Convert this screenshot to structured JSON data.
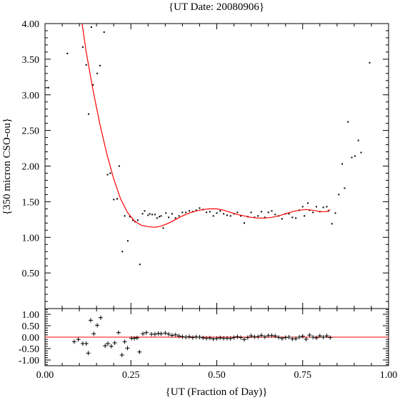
{
  "chart_data": [
    {
      "type": "scatter",
      "title": "{UT Date: 20080906}",
      "xlabel": "{UT (Fraction of Day)}",
      "ylabel": "{350 micron CSO-ou}",
      "xlim": [
        0.0,
        1.0
      ],
      "ylim": [
        0.0,
        4.0
      ],
      "x_ticks": [
        "0.00",
        "0.25",
        "0.50",
        "0.75",
        "1.00"
      ],
      "y_ticks": [
        "0.50",
        "1.00",
        "1.50",
        "2.00",
        "2.50",
        "3.00",
        "3.50",
        "4.00"
      ],
      "grid": false,
      "series": [
        {
          "marker": "dot",
          "color": "#000000",
          "points": [
            [
              0.01,
              3.1
            ],
            [
              0.065,
              3.58
            ],
            [
              0.11,
              3.67
            ],
            [
              0.12,
              3.42
            ],
            [
              0.127,
              2.73
            ],
            [
              0.135,
              3.95
            ],
            [
              0.14,
              3.14
            ],
            [
              0.152,
              3.3
            ],
            [
              0.16,
              3.41
            ],
            [
              0.172,
              3.88
            ],
            [
              0.182,
              1.88
            ],
            [
              0.19,
              1.9
            ],
            [
              0.2,
              1.53
            ],
            [
              0.21,
              1.54
            ],
            [
              0.216,
              2.0
            ],
            [
              0.225,
              0.8
            ],
            [
              0.232,
              1.3
            ],
            [
              0.241,
              0.95
            ],
            [
              0.247,
              1.29
            ],
            [
              0.256,
              1.24
            ],
            [
              0.262,
              1.22
            ],
            [
              0.27,
              1.24
            ],
            [
              0.276,
              0.62
            ],
            [
              0.284,
              1.33
            ],
            [
              0.29,
              1.37
            ],
            [
              0.3,
              1.31
            ],
            [
              0.305,
              1.33
            ],
            [
              0.312,
              1.32
            ],
            [
              0.32,
              1.32
            ],
            [
              0.326,
              1.27
            ],
            [
              0.333,
              1.29
            ],
            [
              0.338,
              1.3
            ],
            [
              0.344,
              1.13
            ],
            [
              0.352,
              1.34
            ],
            [
              0.36,
              1.28
            ],
            [
              0.37,
              1.33
            ],
            [
              0.38,
              1.27
            ],
            [
              0.39,
              1.3
            ],
            [
              0.4,
              1.35
            ],
            [
              0.41,
              1.35
            ],
            [
              0.42,
              1.37
            ],
            [
              0.43,
              1.36
            ],
            [
              0.44,
              1.38
            ],
            [
              0.45,
              1.41
            ],
            [
              0.46,
              1.39
            ],
            [
              0.47,
              1.35
            ],
            [
              0.48,
              1.36
            ],
            [
              0.49,
              1.3
            ],
            [
              0.5,
              1.34
            ],
            [
              0.51,
              1.37
            ],
            [
              0.52,
              1.33
            ],
            [
              0.53,
              1.31
            ],
            [
              0.54,
              1.3
            ],
            [
              0.55,
              1.33
            ],
            [
              0.56,
              1.35
            ],
            [
              0.57,
              1.3
            ],
            [
              0.58,
              1.2
            ],
            [
              0.59,
              1.29
            ],
            [
              0.6,
              1.35
            ],
            [
              0.61,
              1.28
            ],
            [
              0.62,
              1.3
            ],
            [
              0.63,
              1.36
            ],
            [
              0.64,
              1.28
            ],
            [
              0.65,
              1.35
            ],
            [
              0.66,
              1.37
            ],
            [
              0.67,
              1.32
            ],
            [
              0.68,
              1.3
            ],
            [
              0.69,
              1.26
            ],
            [
              0.7,
              1.33
            ],
            [
              0.71,
              1.33
            ],
            [
              0.72,
              1.28
            ],
            [
              0.73,
              1.27
            ],
            [
              0.74,
              1.38
            ],
            [
              0.75,
              1.43
            ],
            [
              0.755,
              1.3
            ],
            [
              0.765,
              1.48
            ],
            [
              0.77,
              1.38
            ],
            [
              0.78,
              1.35
            ],
            [
              0.79,
              1.43
            ],
            [
              0.8,
              1.36
            ],
            [
              0.81,
              1.42
            ],
            [
              0.82,
              1.43
            ],
            [
              0.825,
              1.37
            ],
            [
              0.835,
              1.19
            ],
            [
              0.845,
              1.34
            ],
            [
              0.855,
              1.6
            ],
            [
              0.865,
              2.03
            ],
            [
              0.872,
              1.69
            ],
            [
              0.882,
              2.62
            ],
            [
              0.893,
              2.12
            ],
            [
              0.902,
              2.14
            ],
            [
              0.912,
              2.36
            ],
            [
              0.92,
              2.19
            ],
            [
              0.945,
              3.45
            ]
          ]
        },
        {
          "marker": "line",
          "color": "#ff0000",
          "points": [
            [
              0.108,
              4.0
            ],
            [
              0.12,
              3.6
            ],
            [
              0.14,
              3.06
            ],
            [
              0.16,
              2.58
            ],
            [
              0.18,
              2.17
            ],
            [
              0.2,
              1.82
            ],
            [
              0.22,
              1.54
            ],
            [
              0.24,
              1.35
            ],
            [
              0.26,
              1.23
            ],
            [
              0.28,
              1.17
            ],
            [
              0.3,
              1.15
            ],
            [
              0.32,
              1.14
            ],
            [
              0.34,
              1.16
            ],
            [
              0.36,
              1.2
            ],
            [
              0.38,
              1.25
            ],
            [
              0.4,
              1.3
            ],
            [
              0.42,
              1.34
            ],
            [
              0.44,
              1.37
            ],
            [
              0.46,
              1.39
            ],
            [
              0.48,
              1.4
            ],
            [
              0.5,
              1.4
            ],
            [
              0.52,
              1.38
            ],
            [
              0.54,
              1.35
            ],
            [
              0.56,
              1.32
            ],
            [
              0.58,
              1.3
            ],
            [
              0.6,
              1.28
            ],
            [
              0.62,
              1.27
            ],
            [
              0.64,
              1.27
            ],
            [
              0.66,
              1.28
            ],
            [
              0.68,
              1.3
            ],
            [
              0.7,
              1.33
            ],
            [
              0.72,
              1.36
            ],
            [
              0.74,
              1.38
            ],
            [
              0.76,
              1.39
            ],
            [
              0.78,
              1.38
            ],
            [
              0.8,
              1.36
            ],
            [
              0.82,
              1.36
            ],
            [
              0.83,
              1.39
            ]
          ]
        }
      ]
    },
    {
      "type": "scatter",
      "xlabel": "{UT (Fraction of Day)}",
      "ylabel": "",
      "xlim": [
        0.0,
        1.0
      ],
      "ylim": [
        -1.25,
        1.25
      ],
      "y_ticks": [
        "1.00",
        "0.50",
        "0.00",
        "-0.50",
        "-1.00"
      ],
      "grid": false,
      "zero_line_color": "#ff0000",
      "series": [
        {
          "marker": "plus",
          "color": "#000000",
          "points": [
            [
              0.085,
              -0.2
            ],
            [
              0.097,
              -0.1
            ],
            [
              0.11,
              -0.28
            ],
            [
              0.12,
              -0.28
            ],
            [
              0.126,
              -0.7
            ],
            [
              0.133,
              0.74
            ],
            [
              0.142,
              0.15
            ],
            [
              0.152,
              0.52
            ],
            [
              0.162,
              0.85
            ],
            [
              0.175,
              -0.38
            ],
            [
              0.183,
              -0.28
            ],
            [
              0.193,
              -0.4
            ],
            [
              0.203,
              -0.25
            ],
            [
              0.214,
              0.2
            ],
            [
              0.224,
              -0.78
            ],
            [
              0.232,
              -0.2
            ],
            [
              0.24,
              -0.48
            ],
            [
              0.252,
              -0.05
            ],
            [
              0.26,
              -0.05
            ],
            [
              0.268,
              -0.03
            ],
            [
              0.275,
              -0.65
            ],
            [
              0.285,
              0.15
            ],
            [
              0.295,
              0.2
            ],
            [
              0.31,
              0.13
            ],
            [
              0.32,
              0.13
            ],
            [
              0.33,
              0.16
            ],
            [
              0.338,
              0.15
            ],
            [
              0.35,
              0.18
            ],
            [
              0.36,
              0.13
            ],
            [
              0.37,
              0.08
            ],
            [
              0.38,
              0.1
            ],
            [
              0.39,
              0.05
            ],
            [
              0.4,
              0.02
            ],
            [
              0.41,
              0.0
            ],
            [
              0.42,
              0.02
            ],
            [
              0.43,
              -0.02
            ],
            [
              0.44,
              0.01
            ],
            [
              0.45,
              0.0
            ],
            [
              0.46,
              -0.03
            ],
            [
              0.47,
              -0.05
            ],
            [
              0.48,
              -0.04
            ],
            [
              0.49,
              -0.08
            ],
            [
              0.5,
              -0.06
            ],
            [
              0.51,
              -0.03
            ],
            [
              0.52,
              -0.05
            ],
            [
              0.53,
              -0.05
            ],
            [
              0.54,
              -0.06
            ],
            [
              0.55,
              -0.02
            ],
            [
              0.56,
              0.02
            ],
            [
              0.57,
              -0.02
            ],
            [
              0.58,
              -0.1
            ],
            [
              0.59,
              -0.02
            ],
            [
              0.6,
              0.06
            ],
            [
              0.61,
              0.01
            ],
            [
              0.62,
              0.02
            ],
            [
              0.63,
              0.08
            ],
            [
              0.64,
              0.01
            ],
            [
              0.65,
              0.07
            ],
            [
              0.66,
              0.07
            ],
            [
              0.67,
              0.05
            ],
            [
              0.68,
              -0.01
            ],
            [
              0.69,
              -0.06
            ],
            [
              0.7,
              -0.02
            ],
            [
              0.71,
              0.0
            ],
            [
              0.72,
              -0.08
            ],
            [
              0.73,
              -0.07
            ],
            [
              0.74,
              0.0
            ],
            [
              0.75,
              0.04
            ],
            [
              0.76,
              -0.09
            ],
            [
              0.77,
              0.09
            ],
            [
              0.78,
              0.0
            ],
            [
              0.79,
              -0.03
            ],
            [
              0.8,
              0.06
            ],
            [
              0.81,
              0.0
            ],
            [
              0.82,
              0.06
            ],
            [
              0.83,
              -0.02
            ]
          ]
        }
      ]
    }
  ]
}
